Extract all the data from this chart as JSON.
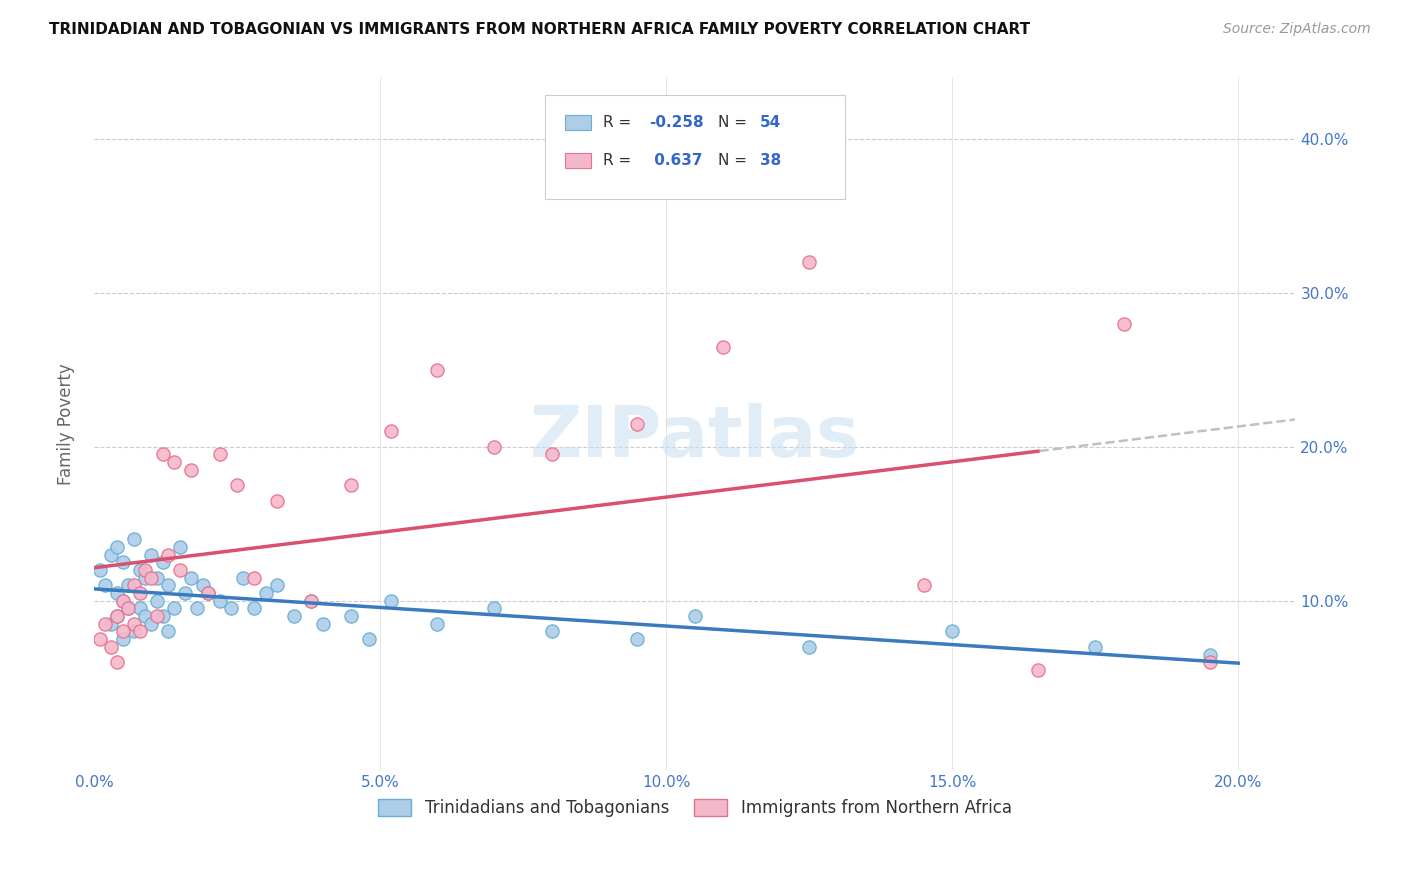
{
  "title": "TRINIDADIAN AND TOBAGONIAN VS IMMIGRANTS FROM NORTHERN AFRICA FAMILY POVERTY CORRELATION CHART",
  "source": "Source: ZipAtlas.com",
  "ylabel": "Family Poverty",
  "xlim": [
    0.0,
    0.21
  ],
  "ylim": [
    -0.01,
    0.44
  ],
  "xtick_vals": [
    0.0,
    0.05,
    0.1,
    0.15,
    0.2
  ],
  "ytick_vals": [
    0.1,
    0.2,
    0.3,
    0.4
  ],
  "blue_fill": "#aecde8",
  "blue_edge": "#6aaed6",
  "pink_fill": "#f4b8cb",
  "pink_edge": "#e8728e",
  "trend_blue": "#3a7abf",
  "trend_pink": "#d95070",
  "trend_gray": "#c0c0c0",
  "R_blue": -0.258,
  "N_blue": 54,
  "R_pink": 0.637,
  "N_pink": 38,
  "watermark": "ZIPatlas",
  "legend_label_blue": "Trinidadians and Tobagonians",
  "legend_label_pink": "Immigrants from Northern Africa",
  "blue_x": [
    0.001,
    0.002,
    0.003,
    0.003,
    0.004,
    0.004,
    0.004,
    0.005,
    0.005,
    0.005,
    0.006,
    0.006,
    0.007,
    0.007,
    0.008,
    0.008,
    0.009,
    0.009,
    0.01,
    0.01,
    0.011,
    0.011,
    0.012,
    0.012,
    0.013,
    0.013,
    0.014,
    0.015,
    0.016,
    0.017,
    0.018,
    0.019,
    0.02,
    0.022,
    0.024,
    0.026,
    0.028,
    0.03,
    0.032,
    0.035,
    0.038,
    0.04,
    0.045,
    0.048,
    0.052,
    0.06,
    0.07,
    0.08,
    0.095,
    0.105,
    0.125,
    0.15,
    0.175,
    0.195
  ],
  "blue_y": [
    0.12,
    0.11,
    0.13,
    0.085,
    0.135,
    0.105,
    0.09,
    0.125,
    0.1,
    0.075,
    0.11,
    0.095,
    0.14,
    0.08,
    0.12,
    0.095,
    0.115,
    0.09,
    0.13,
    0.085,
    0.115,
    0.1,
    0.125,
    0.09,
    0.11,
    0.08,
    0.095,
    0.135,
    0.105,
    0.115,
    0.095,
    0.11,
    0.105,
    0.1,
    0.095,
    0.115,
    0.095,
    0.105,
    0.11,
    0.09,
    0.1,
    0.085,
    0.09,
    0.075,
    0.1,
    0.085,
    0.095,
    0.08,
    0.075,
    0.09,
    0.07,
    0.08,
    0.07,
    0.065
  ],
  "pink_x": [
    0.001,
    0.002,
    0.003,
    0.004,
    0.004,
    0.005,
    0.005,
    0.006,
    0.007,
    0.007,
    0.008,
    0.008,
    0.009,
    0.01,
    0.011,
    0.012,
    0.013,
    0.014,
    0.015,
    0.017,
    0.02,
    0.022,
    0.025,
    0.028,
    0.032,
    0.038,
    0.045,
    0.052,
    0.06,
    0.07,
    0.08,
    0.095,
    0.11,
    0.125,
    0.145,
    0.165,
    0.18,
    0.195
  ],
  "pink_y": [
    0.075,
    0.085,
    0.07,
    0.09,
    0.06,
    0.08,
    0.1,
    0.095,
    0.11,
    0.085,
    0.105,
    0.08,
    0.12,
    0.115,
    0.09,
    0.195,
    0.13,
    0.19,
    0.12,
    0.185,
    0.105,
    0.195,
    0.175,
    0.115,
    0.165,
    0.1,
    0.175,
    0.21,
    0.25,
    0.2,
    0.195,
    0.215,
    0.265,
    0.32,
    0.11,
    0.055,
    0.28,
    0.06
  ]
}
